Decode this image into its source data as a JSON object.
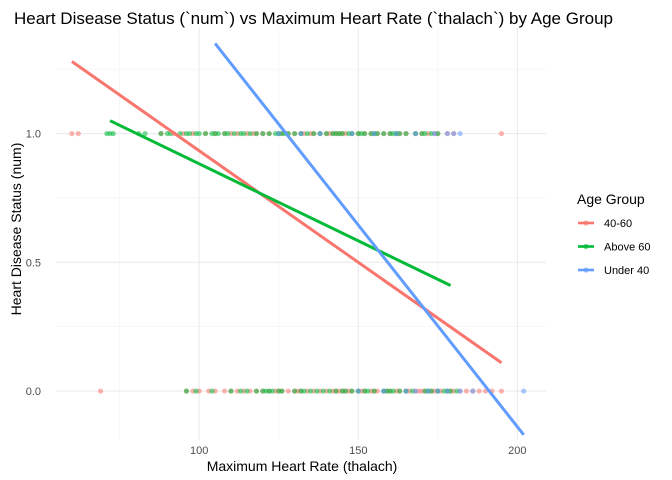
{
  "chart_data": {
    "type": "scatter",
    "title": "Heart Disease Status (`num`) vs Maximum Heart Rate (`thalach`) by Age Group",
    "xlabel": "Maximum Heart Rate (thalach)",
    "ylabel": "Heart Disease Status (num)",
    "xlim": [
      55,
      209
    ],
    "ylim": [
      -0.19,
      1.41
    ],
    "x_ticks": [
      100,
      150,
      200
    ],
    "x_tick_labels": [
      "100",
      "150",
      "200"
    ],
    "y_ticks": [
      0,
      0.5,
      1
    ],
    "y_tick_labels": [
      "0.0",
      "0.5",
      "1.0"
    ],
    "legend": {
      "title": "Age Group",
      "position": "right",
      "entries": [
        "40-60",
        "Above 60",
        "Under 40"
      ]
    },
    "series": [
      {
        "name": "40-60",
        "color": "#F8766D",
        "points_y1": [
          60,
          62,
          88,
          92,
          95,
          98,
          102,
          105,
          108,
          110,
          112,
          115,
          117,
          118,
          120,
          122,
          125,
          126,
          128,
          130,
          132,
          133,
          135,
          136,
          138,
          140,
          141,
          142,
          143,
          144,
          145,
          146,
          148,
          150,
          152,
          154,
          155,
          156,
          158,
          160,
          162,
          163,
          165,
          168,
          170,
          172,
          174,
          175,
          178,
          180,
          195
        ],
        "points_y0": [
          69,
          96,
          98,
          100,
          103,
          105,
          108,
          110,
          112,
          114,
          116,
          118,
          120,
          122,
          124,
          125,
          126,
          128,
          130,
          131,
          132,
          134,
          136,
          138,
          140,
          142,
          143,
          144,
          145,
          146,
          147,
          148,
          150,
          151,
          152,
          154,
          155,
          156,
          158,
          159,
          160,
          162,
          163,
          165,
          166,
          168,
          169,
          170,
          171,
          172,
          173,
          174,
          175,
          176,
          178,
          179,
          180,
          182,
          184,
          186,
          188,
          190,
          192,
          195
        ],
        "fit": {
          "x": [
            60,
            195
          ],
          "y": [
            1.28,
            0.11
          ]
        }
      },
      {
        "name": "Above 60",
        "color": "#00BA38",
        "points_y1": [
          71,
          72,
          73,
          81,
          83,
          88,
          90,
          91,
          94,
          96,
          97,
          99,
          100,
          102,
          104,
          105,
          106,
          108,
          109,
          111,
          113,
          114,
          116,
          118,
          120,
          122,
          124,
          125,
          126,
          127,
          128,
          130,
          132,
          134,
          136,
          138,
          140,
          142,
          143,
          144,
          145,
          147,
          148,
          150,
          151,
          152,
          154,
          155,
          156,
          158,
          160,
          161,
          162,
          163,
          165,
          168,
          170,
          171,
          173,
          175
        ],
        "points_y0": [
          96,
          99,
          104,
          110,
          113,
          115,
          118,
          120,
          121,
          122,
          123,
          125,
          126,
          130,
          132,
          133,
          135,
          137,
          139,
          141,
          143,
          145,
          146,
          148,
          150,
          152,
          153,
          155,
          158,
          159,
          160,
          161,
          163,
          165,
          167,
          171,
          172,
          173,
          175,
          177,
          178,
          179,
          181
        ],
        "fit": {
          "x": [
            72,
            179
          ],
          "y": [
            1.05,
            0.41
          ]
        }
      },
      {
        "name": "Under 40",
        "color": "#619CFF",
        "points_y1": [
          125,
          132,
          138,
          148,
          155,
          162,
          168,
          174,
          178,
          180,
          182
        ],
        "points_y0": [
          150,
          158,
          165,
          168,
          172,
          175,
          178,
          182,
          186,
          202
        ],
        "fit": {
          "x": [
            105,
            202
          ],
          "y": [
            1.35,
            -0.17
          ]
        }
      }
    ]
  }
}
